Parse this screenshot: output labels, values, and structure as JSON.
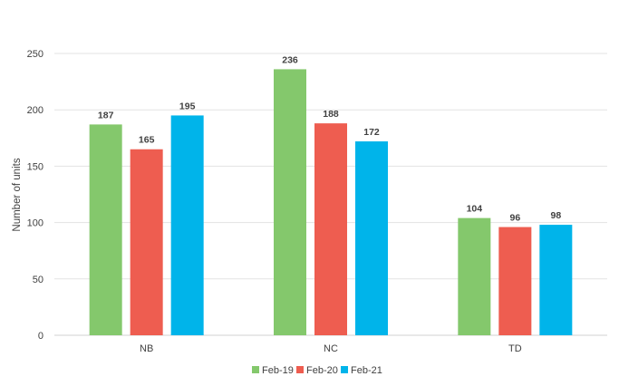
{
  "chart_data": {
    "type": "bar",
    "title": "",
    "xlabel": "",
    "ylabel": "Number of units",
    "ylim": [
      0,
      250
    ],
    "yticks": [
      0,
      50,
      100,
      150,
      200,
      250
    ],
    "categories": [
      "NB",
      "NC",
      "TD"
    ],
    "series": [
      {
        "name": "Feb-19",
        "color": "#84c86c",
        "values": [
          187,
          236,
          104
        ]
      },
      {
        "name": "Feb-20",
        "color": "#ee5d50",
        "values": [
          165,
          188,
          96
        ]
      },
      {
        "name": "Feb-21",
        "color": "#00b4ea",
        "values": [
          195,
          172,
          98
        ]
      }
    ],
    "grid": true,
    "legend": "bottom"
  }
}
